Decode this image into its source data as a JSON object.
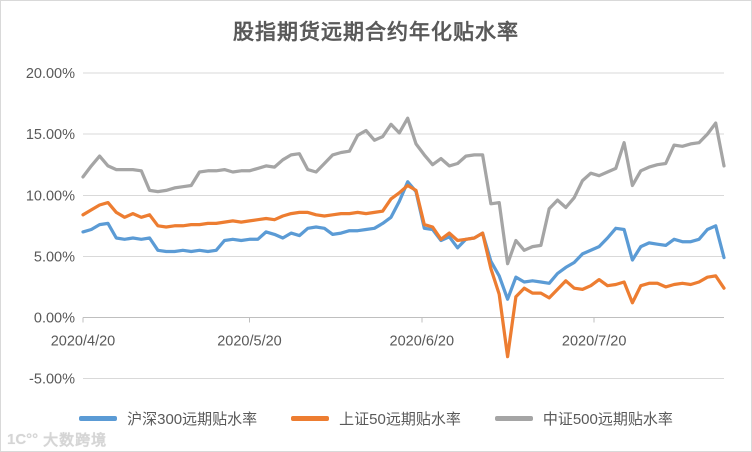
{
  "title": "股指期货远期合约年化贴水率",
  "watermark": {
    "logo": "1C°°",
    "text": "大数跨境"
  },
  "colors": {
    "blue": "#5B9BD5",
    "orange": "#ED7D31",
    "gray": "#A5A5A5",
    "gridline": "#D9D9D9",
    "axis_line": "#BFBFBF",
    "axis_text": "#595959",
    "title_text": "#595959"
  },
  "chart_data": {
    "type": "line",
    "title": "股指期货远期合约年化贴水率",
    "xlabel": "",
    "ylabel": "",
    "ylim": [
      -5,
      20
    ],
    "grid": "horizontal",
    "legend_position": "bottom",
    "y_ticks": {
      "values": [
        20,
        15,
        10,
        5,
        0,
        -5
      ],
      "labels": [
        "20.00%",
        "15.00%",
        "10.00%",
        "5.00%",
        "0.00%",
        "-5.00%"
      ]
    },
    "x_ticks": {
      "labels": [
        "2020/4/20",
        "2020/5/20",
        "2020/6/20",
        "2020/7/20"
      ],
      "indices": [
        0,
        20,
        40.7,
        61.4
      ]
    },
    "x": [
      "2020/4/20",
      "2020/4/21",
      "2020/4/22",
      "2020/4/23",
      "2020/4/24",
      "2020/4/27",
      "2020/4/28",
      "2020/4/29",
      "2020/4/30",
      "2020/5/6",
      "2020/5/7",
      "2020/5/8",
      "2020/5/11",
      "2020/5/12",
      "2020/5/13",
      "2020/5/14",
      "2020/5/15",
      "2020/5/18",
      "2020/5/19",
      "2020/5/20",
      "2020/5/21",
      "2020/5/22",
      "2020/5/25",
      "2020/5/26",
      "2020/5/27",
      "2020/5/28",
      "2020/5/29",
      "2020/6/1",
      "2020/6/2",
      "2020/6/3",
      "2020/6/4",
      "2020/6/5",
      "2020/6/8",
      "2020/6/9",
      "2020/6/10",
      "2020/6/11",
      "2020/6/12",
      "2020/6/15",
      "2020/6/16",
      "2020/6/17",
      "2020/6/18",
      "2020/6/19",
      "2020/6/22",
      "2020/6/23",
      "2020/6/24",
      "2020/6/29",
      "2020/6/30",
      "2020/7/1",
      "2020/7/2",
      "2020/7/3",
      "2020/7/6",
      "2020/7/7",
      "2020/7/8",
      "2020/7/9",
      "2020/7/10",
      "2020/7/13",
      "2020/7/14",
      "2020/7/15",
      "2020/7/16",
      "2020/7/17",
      "2020/7/20",
      "2020/7/21",
      "2020/7/22",
      "2020/7/23",
      "2020/7/24",
      "2020/7/27",
      "2020/7/28",
      "2020/7/29",
      "2020/7/30",
      "2020/7/31",
      "2020/8/3",
      "2020/8/4",
      "2020/8/5",
      "2020/8/6",
      "2020/8/7",
      "2020/8/10",
      "2020/8/11",
      "2020/8/12"
    ],
    "series": [
      {
        "name": "沪深300远期贴水率",
        "color": "#5B9BD5",
        "values": [
          7.0,
          7.2,
          7.6,
          7.7,
          6.5,
          6.4,
          6.5,
          6.4,
          6.5,
          5.5,
          5.4,
          5.4,
          5.5,
          5.4,
          5.5,
          5.4,
          5.5,
          6.3,
          6.4,
          6.3,
          6.4,
          6.4,
          7.0,
          6.8,
          6.5,
          6.9,
          6.7,
          7.3,
          7.4,
          7.3,
          6.8,
          6.9,
          7.1,
          7.1,
          7.2,
          7.3,
          7.7,
          8.2,
          9.5,
          11.1,
          10.3,
          7.3,
          7.2,
          6.3,
          6.6,
          5.7,
          6.4,
          6.5,
          6.9,
          4.6,
          3.4,
          1.5,
          3.3,
          2.9,
          3.0,
          2.9,
          2.8,
          3.6,
          4.1,
          4.5,
          5.2,
          5.5,
          5.8,
          6.5,
          7.3,
          7.2,
          4.7,
          5.8,
          6.1,
          6.0,
          5.9,
          6.4,
          6.2,
          6.2,
          6.4,
          7.2,
          7.5,
          4.9
        ]
      },
      {
        "name": "上证50远期贴水率",
        "color": "#ED7D31",
        "values": [
          8.4,
          8.8,
          9.2,
          9.4,
          8.6,
          8.2,
          8.5,
          8.2,
          8.4,
          7.5,
          7.4,
          7.5,
          7.5,
          7.6,
          7.6,
          7.7,
          7.7,
          7.8,
          7.9,
          7.8,
          7.9,
          8.0,
          8.1,
          8.0,
          8.3,
          8.5,
          8.6,
          8.6,
          8.4,
          8.3,
          8.4,
          8.5,
          8.5,
          8.6,
          8.5,
          8.6,
          8.7,
          9.7,
          10.2,
          10.8,
          10.4,
          7.6,
          7.4,
          6.4,
          6.9,
          6.3,
          6.4,
          6.5,
          6.9,
          4.0,
          1.9,
          -3.2,
          1.7,
          2.4,
          2.0,
          2.0,
          1.6,
          2.3,
          3.0,
          2.4,
          2.3,
          2.6,
          3.1,
          2.6,
          2.7,
          2.9,
          1.2,
          2.6,
          2.8,
          2.8,
          2.5,
          2.7,
          2.8,
          2.7,
          2.9,
          3.3,
          3.4,
          2.4
        ]
      },
      {
        "name": "中证500远期贴水率",
        "color": "#A5A5A5",
        "values": [
          11.5,
          12.4,
          13.2,
          12.4,
          12.1,
          12.1,
          12.1,
          12.0,
          10.4,
          10.3,
          10.4,
          10.6,
          10.7,
          10.8,
          11.9,
          12.0,
          12.0,
          12.1,
          11.9,
          12.0,
          12.0,
          12.2,
          12.4,
          12.3,
          12.9,
          13.3,
          13.4,
          12.1,
          11.9,
          12.6,
          13.3,
          13.5,
          13.6,
          14.9,
          15.3,
          14.5,
          14.8,
          15.8,
          15.1,
          16.3,
          14.2,
          13.3,
          12.5,
          13.0,
          12.4,
          12.6,
          13.2,
          13.3,
          13.3,
          9.3,
          9.4,
          4.4,
          6.3,
          5.5,
          5.8,
          5.9,
          8.9,
          9.6,
          9.0,
          9.8,
          11.2,
          11.8,
          11.6,
          11.9,
          12.2,
          14.3,
          10.8,
          12.0,
          12.3,
          12.5,
          12.6,
          14.1,
          14.0,
          14.2,
          14.3,
          15.0,
          15.9,
          12.4
        ]
      }
    ]
  }
}
